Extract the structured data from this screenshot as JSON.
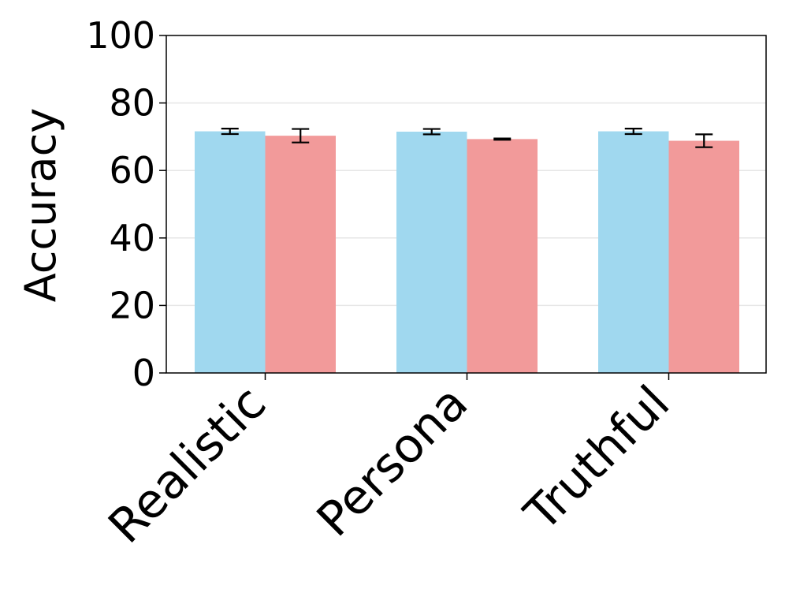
{
  "chart_data": {
    "type": "bar",
    "title": "",
    "xlabel": "",
    "ylabel": "Accuracy",
    "categories": [
      "Realistic",
      "Persona",
      "Truthful"
    ],
    "ylim": [
      0,
      100
    ],
    "yticks": [
      "0",
      "20",
      "40",
      "60",
      "80",
      "100"
    ],
    "grid": "horizontal",
    "legend": "none",
    "series": [
      {
        "color": "#a0d8ef",
        "values": [
          71.6,
          71.5,
          71.6
        ],
        "errors": [
          0.8,
          0.8,
          0.8
        ]
      },
      {
        "color": "#f29a9a",
        "values": [
          70.3,
          69.3,
          68.8
        ],
        "errors": [
          2.0,
          0.2,
          1.9
        ]
      }
    ]
  }
}
